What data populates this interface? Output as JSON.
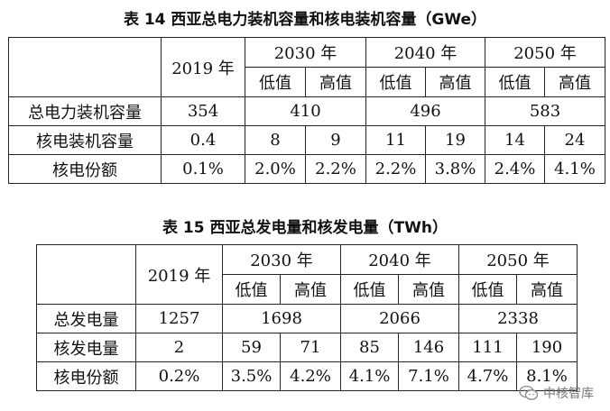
{
  "table14": {
    "title": "表 14 西亚总电力装机容量和核电装机容量（GWe）",
    "year_2019": "2019 年",
    "year_2030": "2030 年",
    "year_2040": "2040 年",
    "year_2050": "2050 年",
    "low": "低值",
    "high": "高值",
    "rows": [
      {
        "label": "总电力装机容量",
        "y2019": "354",
        "y2030": "410",
        "y2040": "496",
        "y2050": "583"
      },
      {
        "label": "核电装机容量",
        "y2019": "0.4",
        "y2030_low": "8",
        "y2030_high": "9",
        "y2040_low": "11",
        "y2040_high": "19",
        "y2050_low": "14",
        "y2050_high": "24"
      },
      {
        "label": "核电份额",
        "y2019": "0.1%",
        "y2030_low": "2.0%",
        "y2030_high": "2.2%",
        "y2040_low": "2.2%",
        "y2040_high": "3.8%",
        "y2050_low": "2.4%",
        "y2050_high": "4.1%"
      }
    ]
  },
  "table15": {
    "title": "表 15 西亚总发电量和核发电量（TWh）",
    "year_2019": "2019 年",
    "year_2030": "2030 年",
    "year_2040": "2040 年",
    "year_2050": "2050 年",
    "low": "低值",
    "high": "高值",
    "rows": [
      {
        "label": "总发电量",
        "y2019": "1257",
        "y2030": "1698",
        "y2040": "2066",
        "y2050": "2338"
      },
      {
        "label": "核发电量",
        "y2019": "2",
        "y2030_low": "59",
        "y2030_high": "71",
        "y2040_low": "85",
        "y2040_high": "146",
        "y2050_low": "111",
        "y2050_high": "190"
      },
      {
        "label": "核电份额",
        "y2019": "0.2%",
        "y2030_low": "3.5%",
        "y2030_high": "4.2%",
        "y2040_low": "4.1%",
        "y2040_high": "7.1%",
        "y2050_low": "4.7%",
        "y2050_high": "8.1%"
      }
    ]
  },
  "watermark": {
    "text": "中核智库",
    "icon": "wechat-icon"
  }
}
